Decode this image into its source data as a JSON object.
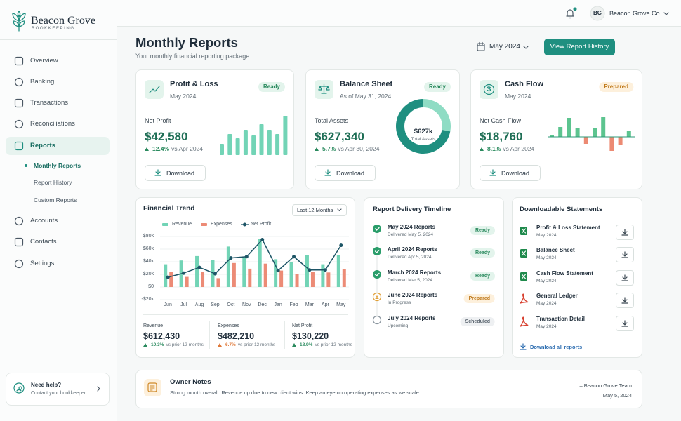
{
  "brand": {
    "name": "Beacon Grove",
    "tagline": "BOOKKEEPING"
  },
  "nav": {
    "items": [
      "Overview",
      "Banking",
      "Transactions",
      "Reconciliations",
      "Reports",
      "Accounts",
      "Contacts",
      "Settings"
    ],
    "subitems": [
      "Monthly Reports",
      "Report History",
      "Custom Reports"
    ]
  },
  "help": {
    "title": "Need help?",
    "subtitle": "Contact your bookkeeper"
  },
  "topbar": {
    "initials": "BG",
    "account": "Beacon Grove Co."
  },
  "header": {
    "title": "Monthly Reports",
    "subtitle": "Your monthly financial reporting package",
    "period": "May 2024",
    "action": "View Report History"
  },
  "cards": [
    {
      "title": "Profit & Loss",
      "date": "May 2024",
      "status": "Ready",
      "tone": "done",
      "metric_label": "Net Profit",
      "metric": "$42,580",
      "change": "12.4%",
      "comparison": "vs Apr 2024",
      "action": "Download",
      "chart": {
        "type": "bar",
        "values": [
          16,
          30,
          24,
          36,
          28,
          44,
          36,
          30,
          56
        ],
        "color": "#72d4b6"
      }
    },
    {
      "title": "Balance Sheet",
      "date": "As of May 31, 2024",
      "status": "Ready",
      "tone": "done",
      "metric_label": "Total Assets",
      "metric": "$627,340",
      "change": "5.7%",
      "comparison": "vs Apr 30, 2024",
      "action": "Download",
      "chart": {
        "type": "donut",
        "values": [
          28,
          72
        ],
        "colors": [
          "#8fdcc4",
          "#1f8f80"
        ],
        "center_value": "$627k",
        "center_label": "Total Assets"
      }
    },
    {
      "title": "Cash Flow",
      "date": "May 2024",
      "status": "Prepared",
      "tone": "pending",
      "metric_label": "Net Cash Flow",
      "metric": "$18,760",
      "change": "8.1%",
      "comparison": "vs Apr 2024",
      "action": "Download",
      "chart": {
        "type": "diverging-bar",
        "values": [
          3,
          14,
          27,
          12,
          -10,
          13,
          28,
          -20,
          -12,
          8
        ],
        "positive_color": "#5cc48f",
        "negative_color": "#ec8a73"
      }
    }
  ],
  "trend": {
    "title": "Financial Trend",
    "range": "Last 12 Months",
    "chart": {
      "type": "bar-line",
      "categories": [
        "Jun",
        "Jul",
        "Aug",
        "Sep",
        "Oct",
        "Nov",
        "Dec",
        "Jan",
        "Feb",
        "Mar",
        "Apr",
        "May"
      ],
      "series": [
        {
          "name": "Revenue",
          "type": "bar",
          "color": "#72d4b6",
          "values": [
            36000,
            42000,
            49000,
            43000,
            64000,
            48000,
            76000,
            44000,
            40000,
            50000,
            36000,
            51000
          ]
        },
        {
          "name": "Expenses",
          "type": "bar",
          "color": "#ec8b76",
          "values": [
            24000,
            16000,
            24000,
            14000,
            38000,
            29000,
            37000,
            26000,
            20000,
            24000,
            23000,
            28000
          ]
        },
        {
          "name": "Net Profit",
          "type": "line",
          "color": "#1d5566",
          "values": [
            15500,
            22000,
            31000,
            21000,
            46000,
            48000,
            75000,
            26000,
            48000,
            27000,
            27000,
            66000
          ]
        }
      ],
      "ylim": [
        -20000,
        80000
      ],
      "yticks": [
        {
          "value": -20000,
          "label": "-$20k"
        },
        {
          "value": 0,
          "label": "$0"
        },
        {
          "value": 20000,
          "label": "$20k"
        },
        {
          "value": 40000,
          "label": "$40k"
        },
        {
          "value": 60000,
          "label": "$60k"
        },
        {
          "value": 80000,
          "label": "$80k"
        }
      ],
      "grid": true
    },
    "summary": [
      {
        "label": "Revenue",
        "value": "$612,430",
        "change": "10.3%",
        "comparison": "vs prior 12 months",
        "color": "#2a8a5e"
      },
      {
        "label": "Expenses",
        "value": "$482,210",
        "change": "6.7%",
        "comparison": "vs prior 12 months",
        "color": "#e07a3a"
      },
      {
        "label": "Net Profit",
        "value": "$130,220",
        "change": "18.9%",
        "comparison": "vs prior 12 months",
        "color": "#2a8a5e"
      }
    ]
  },
  "timeline": {
    "title": "Report Delivery Timeline",
    "items": [
      {
        "title": "May 2024 Reports",
        "detail": "Delivered May 5, 2024",
        "status": "Ready",
        "tone": "done"
      },
      {
        "title": "April 2024 Reports",
        "detail": "Delivered Apr 5, 2024",
        "status": "Ready",
        "tone": "done"
      },
      {
        "title": "March 2024 Reports",
        "detail": "Delivered Mar 5, 2024",
        "status": "Ready",
        "tone": "done"
      },
      {
        "title": "June 2024 Reports",
        "detail": "In Progress",
        "status": "Prepared",
        "tone": "pending"
      },
      {
        "title": "July 2024 Reports",
        "detail": "Upcoming",
        "status": "Scheduled",
        "tone": "upcoming"
      }
    ]
  },
  "statements": {
    "title": "Downloadable Statements",
    "items": [
      {
        "name": "Profit & Loss Statement",
        "date": "May 2024",
        "icon": "xlsx"
      },
      {
        "name": "Balance Sheet",
        "date": "May 2024",
        "icon": "xlsx"
      },
      {
        "name": "Cash Flow Statement",
        "date": "May 2024",
        "icon": "xlsx"
      },
      {
        "name": "General Ledger",
        "date": "May 2024",
        "icon": "pdf"
      },
      {
        "name": "Transaction Detail",
        "date": "May 2024",
        "icon": "pdf"
      }
    ],
    "link": "Download all reports"
  },
  "notes": {
    "title": "Owner Notes",
    "text": "Strong month overall. Revenue up due to new client wins. Keep an eye on operating expenses as we scale.",
    "author": "– Beacon Grove Team",
    "date": "May 5, 2024"
  }
}
